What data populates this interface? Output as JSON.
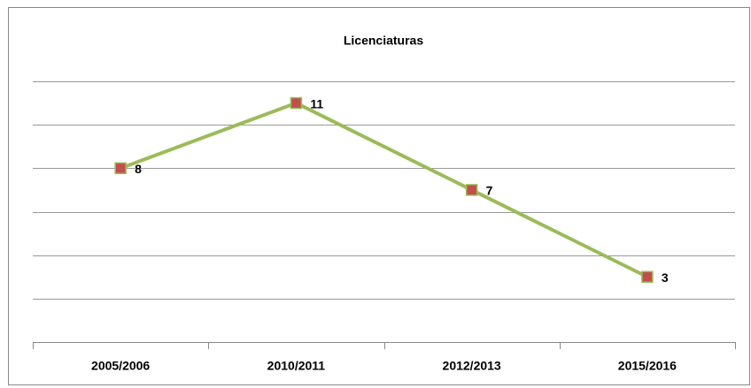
{
  "chart_data": {
    "type": "line",
    "title": "Licenciaturas",
    "categories": [
      "2005/2006",
      "2010/2011",
      "2012/2013",
      "2015/2016"
    ],
    "series": [
      {
        "name": "Licenciaturas",
        "color": "#9bbb59",
        "marker_color": "#c0504d",
        "values": [
          8,
          11,
          7,
          3
        ]
      }
    ],
    "ylim": [
      0,
      12
    ],
    "yticks": [
      0,
      2,
      4,
      6,
      8,
      10,
      12
    ],
    "grid": true,
    "legend": false
  }
}
